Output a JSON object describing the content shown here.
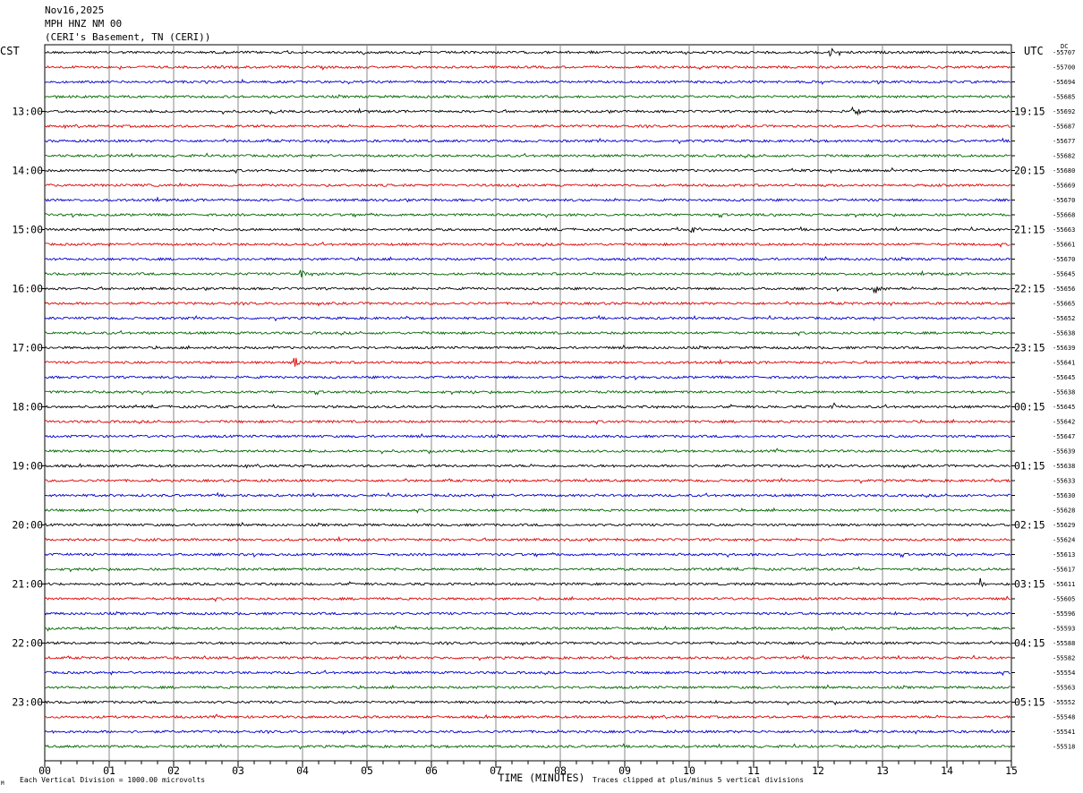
{
  "header": {
    "date": "Nov16,2025",
    "station": "MPH HNZ NM 00",
    "location": "(CERI's Basement, TN (CERI))"
  },
  "left_zone": "CST",
  "right_zone": "UTC",
  "dc_label": "DC",
  "footer": {
    "scale_note": "Each Vertical Division = 1000.00 microvolts",
    "clip_note": "Traces clipped at plus/minus 5 vertical divisions",
    "corner_mark": "M"
  },
  "trace_colors": [
    "#000000",
    "#dd0000",
    "#0000cc",
    "#006600"
  ],
  "chart_data": {
    "type": "line",
    "title": "",
    "xlabel": "TIME (MINUTES)",
    "ylabel": "",
    "xlim": [
      0,
      15
    ],
    "x_ticks": [
      "00",
      "01",
      "02",
      "03",
      "04",
      "05",
      "06",
      "07",
      "08",
      "09",
      "10",
      "11",
      "12",
      "13",
      "14",
      "15"
    ],
    "minutes_per_trace": 15,
    "traces_per_hour": 4,
    "left_hour_labels": [
      "13:00",
      "14:00",
      "15:00",
      "16:00",
      "17:00",
      "18:00",
      "19:00",
      "20:00",
      "21:00",
      "22:00",
      "23:00"
    ],
    "right_hour_labels": [
      "19:15",
      "20:15",
      "21:15",
      "22:15",
      "23:15",
      "00:15",
      "01:15",
      "02:15",
      "03:15",
      "04:15",
      "05:15"
    ],
    "dc_offsets": [
      -55707,
      -55700,
      -55694,
      -55685,
      -55692,
      -55687,
      -55677,
      -55682,
      -55680,
      -55669,
      -55670,
      -55668,
      -55663,
      -55661,
      -55670,
      -55645,
      -55656,
      -55665,
      -55652,
      -55638,
      -55639,
      -55641,
      -55645,
      -55638,
      -55645,
      -55642,
      -55647,
      -55639,
      -55638,
      -55633,
      -55630,
      -55628,
      -55629,
      -55624,
      -55613,
      -55617,
      -55611,
      -55605,
      -55596,
      -55593,
      -55588,
      -55582,
      -55554,
      -55563,
      -55552,
      -55548,
      -55541,
      -55518
    ],
    "events": [
      {
        "trace": 0,
        "minute": 12.2,
        "amp": 4
      },
      {
        "trace": 4,
        "minute": 12.55,
        "amp": 6
      },
      {
        "trace": 4,
        "minute": 3.6,
        "amp": 3
      },
      {
        "trace": 8,
        "minute": 11.6,
        "amp": 3
      },
      {
        "trace": 12,
        "minute": 10.05,
        "amp": 4
      },
      {
        "trace": 15,
        "minute": 4.0,
        "amp": 6
      },
      {
        "trace": 16,
        "minute": 12.9,
        "amp": 5
      },
      {
        "trace": 21,
        "minute": 3.9,
        "amp": 6
      },
      {
        "trace": 24,
        "minute": 12.25,
        "amp": 4
      },
      {
        "trace": 36,
        "minute": 14.55,
        "amp": 6
      },
      {
        "trace": 33,
        "minute": 1.2,
        "amp": 3
      }
    ]
  }
}
